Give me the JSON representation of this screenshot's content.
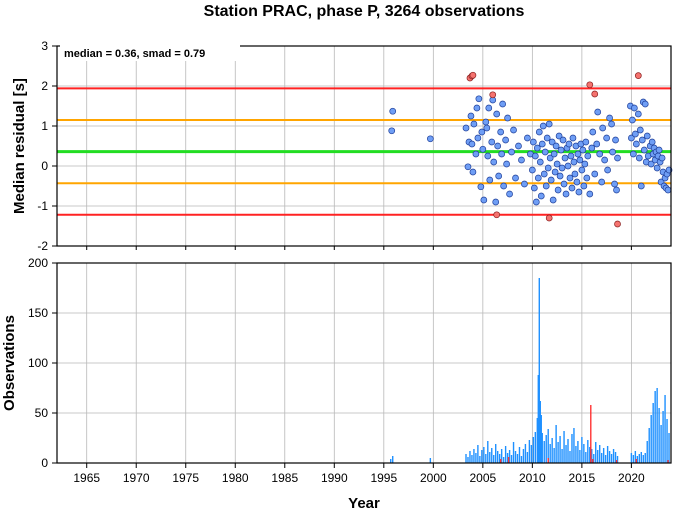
{
  "colors": {
    "median_line": "#22dd22",
    "inner_band": "#ffa500",
    "outer_band": "#ff2222",
    "point_fill_normal": "#6f9ef5",
    "point_fill_outlier": "#f5736f",
    "point_stroke": "#1f3f99",
    "bar_normal": "#1e90ff",
    "bar_outlier": "#ff3333",
    "grid": "#b8b8b8"
  },
  "chart_data": [
    {
      "type": "scatter",
      "title": "Station PRAC, phase P, 3264 observations",
      "ylabel": "Median residual [s]",
      "annotation": "median = 0.36, smad = 0.79",
      "xlim": [
        1962,
        2024
      ],
      "ylim": [
        -2,
        3
      ],
      "xticks": [
        1965,
        1970,
        1975,
        1980,
        1985,
        1990,
        1995,
        2000,
        2005,
        2010,
        2015,
        2020
      ],
      "yticks": [
        -2,
        -1,
        0,
        1,
        2,
        3
      ],
      "grid": true,
      "reference_lines": [
        {
          "role": "median",
          "y": 0.36
        },
        {
          "role": "inner",
          "y": 1.15
        },
        {
          "role": "inner",
          "y": -0.43
        },
        {
          "role": "outer",
          "y": 1.94
        },
        {
          "role": "outer",
          "y": -1.22
        }
      ],
      "points": [
        {
          "x": 1995.8,
          "y": 0.88
        },
        {
          "x": 1995.9,
          "y": 1.37
        },
        {
          "x": 1999.7,
          "y": 0.68
        },
        {
          "x": 2003.3,
          "y": 0.95
        },
        {
          "x": 2003.5,
          "y": -0.02
        },
        {
          "x": 2003.6,
          "y": 0.6
        },
        {
          "x": 2003.8,
          "y": 1.25
        },
        {
          "x": 2003.9,
          "y": 0.55
        },
        {
          "x": 2004.0,
          "y": -0.15
        },
        {
          "x": 2004.1,
          "y": 1.05
        },
        {
          "x": 2004.3,
          "y": 0.3
        },
        {
          "x": 2004.4,
          "y": 1.45
        },
        {
          "x": 2004.5,
          "y": 0.7
        },
        {
          "x": 2004.6,
          "y": 1.68
        },
        {
          "x": 2004.8,
          "y": -0.52
        },
        {
          "x": 2004.9,
          "y": 0.85
        },
        {
          "x": 2005.0,
          "y": 0.42
        },
        {
          "x": 2005.1,
          "y": -0.85
        },
        {
          "x": 2005.3,
          "y": 1.1
        },
        {
          "x": 2005.4,
          "y": 0.95
        },
        {
          "x": 2005.5,
          "y": 0.25
        },
        {
          "x": 2005.6,
          "y": 1.45
        },
        {
          "x": 2005.7,
          "y": -0.35
        },
        {
          "x": 2005.9,
          "y": 0.6
        },
        {
          "x": 2006.0,
          "y": 1.65
        },
        {
          "x": 2006.1,
          "y": 0.1
        },
        {
          "x": 2006.3,
          "y": -0.9
        },
        {
          "x": 2006.4,
          "y": 1.3
        },
        {
          "x": 2006.5,
          "y": 0.5
        },
        {
          "x": 2006.6,
          "y": -0.25
        },
        {
          "x": 2006.8,
          "y": 0.85
        },
        {
          "x": 2006.9,
          "y": 0.3
        },
        {
          "x": 2007.0,
          "y": 1.55
        },
        {
          "x": 2007.1,
          "y": -0.5
        },
        {
          "x": 2007.3,
          "y": 0.65
        },
        {
          "x": 2007.4,
          "y": 0.05
        },
        {
          "x": 2007.5,
          "y": 1.2
        },
        {
          "x": 2007.7,
          "y": -0.7
        },
        {
          "x": 2007.9,
          "y": 0.35
        },
        {
          "x": 2008.1,
          "y": 0.9
        },
        {
          "x": 2008.3,
          "y": -0.3
        },
        {
          "x": 2008.6,
          "y": 0.5
        },
        {
          "x": 2008.9,
          "y": 0.15
        },
        {
          "x": 2009.2,
          "y": -0.45
        },
        {
          "x": 2009.5,
          "y": 0.7
        },
        {
          "x": 2009.8,
          "y": 0.3
        },
        {
          "x": 2010.0,
          "y": -0.1
        },
        {
          "x": 2010.1,
          "y": 0.6
        },
        {
          "x": 2010.2,
          "y": -0.55
        },
        {
          "x": 2010.3,
          "y": 0.25
        },
        {
          "x": 2010.4,
          "y": -0.9
        },
        {
          "x": 2010.5,
          "y": 0.45
        },
        {
          "x": 2010.6,
          "y": -0.3
        },
        {
          "x": 2010.7,
          "y": 0.85
        },
        {
          "x": 2010.8,
          "y": 0.1
        },
        {
          "x": 2010.9,
          "y": -0.75
        },
        {
          "x": 2011.0,
          "y": 0.55
        },
        {
          "x": 2011.1,
          "y": 1.0
        },
        {
          "x": 2011.2,
          "y": -0.2
        },
        {
          "x": 2011.3,
          "y": 0.35
        },
        {
          "x": 2011.4,
          "y": -0.5
        },
        {
          "x": 2011.5,
          "y": 0.7
        },
        {
          "x": 2011.6,
          "y": -0.05
        },
        {
          "x": 2011.7,
          "y": 1.05
        },
        {
          "x": 2011.8,
          "y": 0.2
        },
        {
          "x": 2011.9,
          "y": -0.35
        },
        {
          "x": 2012.0,
          "y": 0.6
        },
        {
          "x": 2012.1,
          "y": -0.85
        },
        {
          "x": 2012.2,
          "y": 0.3
        },
        {
          "x": 2012.3,
          "y": -0.15
        },
        {
          "x": 2012.4,
          "y": 0.5
        },
        {
          "x": 2012.5,
          "y": 0.05
        },
        {
          "x": 2012.6,
          "y": -0.6
        },
        {
          "x": 2012.7,
          "y": 0.75
        },
        {
          "x": 2012.8,
          "y": -0.25
        },
        {
          "x": 2012.9,
          "y": 0.4
        },
        {
          "x": 2013.0,
          "y": -0.05
        },
        {
          "x": 2013.1,
          "y": 0.65
        },
        {
          "x": 2013.2,
          "y": -0.45
        },
        {
          "x": 2013.3,
          "y": 0.2
        },
        {
          "x": 2013.4,
          "y": -0.7
        },
        {
          "x": 2013.5,
          "y": 0.45
        },
        {
          "x": 2013.6,
          "y": 0.0
        },
        {
          "x": 2013.7,
          "y": 0.55
        },
        {
          "x": 2013.8,
          "y": -0.3
        },
        {
          "x": 2013.9,
          "y": 0.25
        },
        {
          "x": 2014.0,
          "y": -0.55
        },
        {
          "x": 2014.1,
          "y": 0.7
        },
        {
          "x": 2014.2,
          "y": 0.1
        },
        {
          "x": 2014.3,
          "y": -0.2
        },
        {
          "x": 2014.4,
          "y": 0.5
        },
        {
          "x": 2014.5,
          "y": -0.4
        },
        {
          "x": 2014.6,
          "y": 0.3
        },
        {
          "x": 2014.7,
          "y": -0.65
        },
        {
          "x": 2014.8,
          "y": 0.15
        },
        {
          "x": 2014.9,
          "y": 0.55
        },
        {
          "x": 2015.0,
          "y": -0.1
        },
        {
          "x": 2015.1,
          "y": 0.4
        },
        {
          "x": 2015.2,
          "y": -0.5
        },
        {
          "x": 2015.3,
          "y": 0.05
        },
        {
          "x": 2015.4,
          "y": 0.6
        },
        {
          "x": 2015.5,
          "y": -0.3
        },
        {
          "x": 2015.6,
          "y": 0.25
        },
        {
          "x": 2015.8,
          "y": -0.7
        },
        {
          "x": 2016.0,
          "y": 0.45
        },
        {
          "x": 2016.1,
          "y": 0.85
        },
        {
          "x": 2016.3,
          "y": -0.2
        },
        {
          "x": 2016.5,
          "y": 0.55
        },
        {
          "x": 2016.6,
          "y": 1.35
        },
        {
          "x": 2016.8,
          "y": 0.3
        },
        {
          "x": 2017.0,
          "y": -0.4
        },
        {
          "x": 2017.1,
          "y": 0.95
        },
        {
          "x": 2017.3,
          "y": 0.15
        },
        {
          "x": 2017.5,
          "y": 0.7
        },
        {
          "x": 2017.6,
          "y": -0.1
        },
        {
          "x": 2017.8,
          "y": 1.2
        },
        {
          "x": 2018.0,
          "y": 1.05
        },
        {
          "x": 2018.1,
          "y": 0.35
        },
        {
          "x": 2018.3,
          "y": -0.45
        },
        {
          "x": 2018.4,
          "y": 0.65
        },
        {
          "x": 2018.5,
          "y": -0.6
        },
        {
          "x": 2018.6,
          "y": 0.2
        },
        {
          "x": 2019.9,
          "y": 1.5
        },
        {
          "x": 2020.0,
          "y": 0.7
        },
        {
          "x": 2020.1,
          "y": 1.15
        },
        {
          "x": 2020.2,
          "y": 0.3
        },
        {
          "x": 2020.3,
          "y": 1.45
        },
        {
          "x": 2020.4,
          "y": 0.8
        },
        {
          "x": 2020.5,
          "y": 0.55
        },
        {
          "x": 2020.7,
          "y": 1.3
        },
        {
          "x": 2020.8,
          "y": 0.2
        },
        {
          "x": 2020.9,
          "y": 0.9
        },
        {
          "x": 2021.0,
          "y": -0.5
        },
        {
          "x": 2021.1,
          "y": 0.65
        },
        {
          "x": 2021.2,
          "y": 1.6
        },
        {
          "x": 2021.3,
          "y": 0.4
        },
        {
          "x": 2021.4,
          "y": 1.55
        },
        {
          "x": 2021.5,
          "y": 0.1
        },
        {
          "x": 2021.6,
          "y": 0.75
        },
        {
          "x": 2021.7,
          "y": 0.25
        },
        {
          "x": 2021.9,
          "y": 0.5
        },
        {
          "x": 2022.0,
          "y": 0.05
        },
        {
          "x": 2022.1,
          "y": 0.6
        },
        {
          "x": 2022.2,
          "y": 0.3
        },
        {
          "x": 2022.3,
          "y": 0.45
        },
        {
          "x": 2022.4,
          "y": 0.15
        },
        {
          "x": 2022.5,
          "y": 0.35
        },
        {
          "x": 2022.6,
          "y": -0.05
        },
        {
          "x": 2022.7,
          "y": 0.25
        },
        {
          "x": 2022.8,
          "y": 0.4
        },
        {
          "x": 2022.9,
          "y": 0.1
        },
        {
          "x": 2023.0,
          "y": -0.4
        },
        {
          "x": 2023.1,
          "y": 0.2
        },
        {
          "x": 2023.2,
          "y": -0.15
        },
        {
          "x": 2023.3,
          "y": -0.5
        },
        {
          "x": 2023.4,
          "y": -0.3
        },
        {
          "x": 2023.5,
          "y": -0.55
        },
        {
          "x": 2023.6,
          "y": -0.2
        },
        {
          "x": 2023.7,
          "y": -0.6
        },
        {
          "x": 2023.8,
          "y": -0.1
        }
      ],
      "outlier_points": [
        {
          "x": 2003.7,
          "y": 2.2
        },
        {
          "x": 2003.9,
          "y": 2.25
        },
        {
          "x": 2004.0,
          "y": 2.27
        },
        {
          "x": 2006.0,
          "y": 1.78
        },
        {
          "x": 2006.4,
          "y": -1.22
        },
        {
          "x": 2011.7,
          "y": -1.3
        },
        {
          "x": 2015.8,
          "y": 2.03
        },
        {
          "x": 2016.3,
          "y": 1.8
        },
        {
          "x": 2018.6,
          "y": -1.45
        },
        {
          "x": 2020.7,
          "y": 2.26
        }
      ]
    },
    {
      "type": "bar",
      "xlabel": "Year",
      "ylabel": "Observations",
      "xlim": [
        1962,
        2024
      ],
      "ylim": [
        0,
        200
      ],
      "xticks": [
        1965,
        1970,
        1975,
        1980,
        1985,
        1990,
        1995,
        2000,
        2005,
        2010,
        2015,
        2020
      ],
      "yticks": [
        0,
        50,
        100,
        150,
        200
      ],
      "grid": true,
      "bars": [
        {
          "x": 1995.7,
          "v": 4
        },
        {
          "x": 1995.9,
          "v": 7
        },
        {
          "x": 1999.7,
          "v": 5
        },
        {
          "x": 2003.3,
          "v": 9
        },
        {
          "x": 2003.5,
          "v": 6
        },
        {
          "x": 2003.7,
          "v": 12
        },
        {
          "x": 2003.9,
          "v": 8
        },
        {
          "x": 2004.1,
          "v": 14
        },
        {
          "x": 2004.3,
          "v": 10
        },
        {
          "x": 2004.5,
          "v": 18
        },
        {
          "x": 2004.7,
          "v": 7
        },
        {
          "x": 2004.9,
          "v": 13
        },
        {
          "x": 2005.1,
          "v": 16
        },
        {
          "x": 2005.3,
          "v": 9
        },
        {
          "x": 2005.5,
          "v": 22
        },
        {
          "x": 2005.7,
          "v": 11
        },
        {
          "x": 2005.9,
          "v": 15
        },
        {
          "x": 2006.1,
          "v": 8
        },
        {
          "x": 2006.3,
          "v": 19
        },
        {
          "x": 2006.5,
          "v": 12
        },
        {
          "x": 2006.7,
          "v": 9
        },
        {
          "x": 2006.9,
          "v": 14
        },
        {
          "x": 2007.1,
          "v": 6
        },
        {
          "x": 2007.3,
          "v": 17
        },
        {
          "x": 2007.5,
          "v": 10
        },
        {
          "x": 2007.7,
          "v": 13
        },
        {
          "x": 2007.9,
          "v": 8
        },
        {
          "x": 2008.1,
          "v": 21
        },
        {
          "x": 2008.3,
          "v": 12
        },
        {
          "x": 2008.5,
          "v": 9
        },
        {
          "x": 2008.7,
          "v": 16
        },
        {
          "x": 2008.9,
          "v": 7
        },
        {
          "x": 2009.1,
          "v": 14
        },
        {
          "x": 2009.3,
          "v": 19
        },
        {
          "x": 2009.5,
          "v": 11
        },
        {
          "x": 2009.7,
          "v": 23
        },
        {
          "x": 2009.9,
          "v": 18
        },
        {
          "x": 2010.1,
          "v": 26
        },
        {
          "x": 2010.3,
          "v": 31
        },
        {
          "x": 2010.5,
          "v": 45
        },
        {
          "x": 2010.6,
          "v": 88
        },
        {
          "x": 2010.7,
          "v": 185
        },
        {
          "x": 2010.8,
          "v": 62
        },
        {
          "x": 2010.9,
          "v": 48
        },
        {
          "x": 2011.0,
          "v": 30
        },
        {
          "x": 2011.2,
          "v": 22
        },
        {
          "x": 2011.4,
          "v": 28
        },
        {
          "x": 2011.6,
          "v": 34
        },
        {
          "x": 2011.8,
          "v": 19
        },
        {
          "x": 2012.0,
          "v": 25
        },
        {
          "x": 2012.2,
          "v": 15
        },
        {
          "x": 2012.4,
          "v": 38
        },
        {
          "x": 2012.6,
          "v": 21
        },
        {
          "x": 2012.8,
          "v": 27
        },
        {
          "x": 2013.0,
          "v": 14
        },
        {
          "x": 2013.2,
          "v": 32
        },
        {
          "x": 2013.4,
          "v": 18
        },
        {
          "x": 2013.6,
          "v": 24
        },
        {
          "x": 2013.8,
          "v": 12
        },
        {
          "x": 2014.0,
          "v": 29
        },
        {
          "x": 2014.2,
          "v": 35
        },
        {
          "x": 2014.4,
          "v": 17
        },
        {
          "x": 2014.6,
          "v": 22
        },
        {
          "x": 2014.8,
          "v": 13
        },
        {
          "x": 2015.0,
          "v": 26
        },
        {
          "x": 2015.2,
          "v": 19
        },
        {
          "x": 2015.4,
          "v": 11
        },
        {
          "x": 2015.6,
          "v": 23
        },
        {
          "x": 2015.8,
          "v": 16
        },
        {
          "x": 2016.0,
          "v": 14
        },
        {
          "x": 2016.2,
          "v": 9
        },
        {
          "x": 2016.4,
          "v": 21
        },
        {
          "x": 2016.6,
          "v": 13
        },
        {
          "x": 2016.8,
          "v": 18
        },
        {
          "x": 2017.0,
          "v": 10
        },
        {
          "x": 2017.2,
          "v": 15
        },
        {
          "x": 2017.4,
          "v": 8
        },
        {
          "x": 2017.6,
          "v": 17
        },
        {
          "x": 2017.8,
          "v": 12
        },
        {
          "x": 2018.0,
          "v": 9
        },
        {
          "x": 2018.2,
          "v": 14
        },
        {
          "x": 2018.4,
          "v": 11
        },
        {
          "x": 2018.6,
          "v": 7
        },
        {
          "x": 2020.0,
          "v": 10
        },
        {
          "x": 2020.2,
          "v": 8
        },
        {
          "x": 2020.4,
          "v": 12
        },
        {
          "x": 2020.6,
          "v": 7
        },
        {
          "x": 2020.8,
          "v": 9
        },
        {
          "x": 2021.0,
          "v": 11
        },
        {
          "x": 2021.2,
          "v": 8
        },
        {
          "x": 2021.4,
          "v": 10
        },
        {
          "x": 2021.6,
          "v": 22
        },
        {
          "x": 2021.8,
          "v": 35
        },
        {
          "x": 2022.0,
          "v": 48
        },
        {
          "x": 2022.2,
          "v": 60
        },
        {
          "x": 2022.4,
          "v": 72
        },
        {
          "x": 2022.6,
          "v": 75
        },
        {
          "x": 2022.8,
          "v": 55
        },
        {
          "x": 2023.0,
          "v": 38
        },
        {
          "x": 2023.2,
          "v": 52
        },
        {
          "x": 2023.4,
          "v": 68
        },
        {
          "x": 2023.6,
          "v": 44
        },
        {
          "x": 2023.8,
          "v": 30
        }
      ],
      "outlier_bars": [
        {
          "x": 2006.8,
          "v": 4
        },
        {
          "x": 2007.6,
          "v": 6
        },
        {
          "x": 2011.6,
          "v": 5
        },
        {
          "x": 2015.9,
          "v": 58
        },
        {
          "x": 2016.1,
          "v": 4
        },
        {
          "x": 2018.5,
          "v": 3
        },
        {
          "x": 2020.5,
          "v": 4
        },
        {
          "x": 2023.7,
          "v": 3
        }
      ]
    }
  ]
}
